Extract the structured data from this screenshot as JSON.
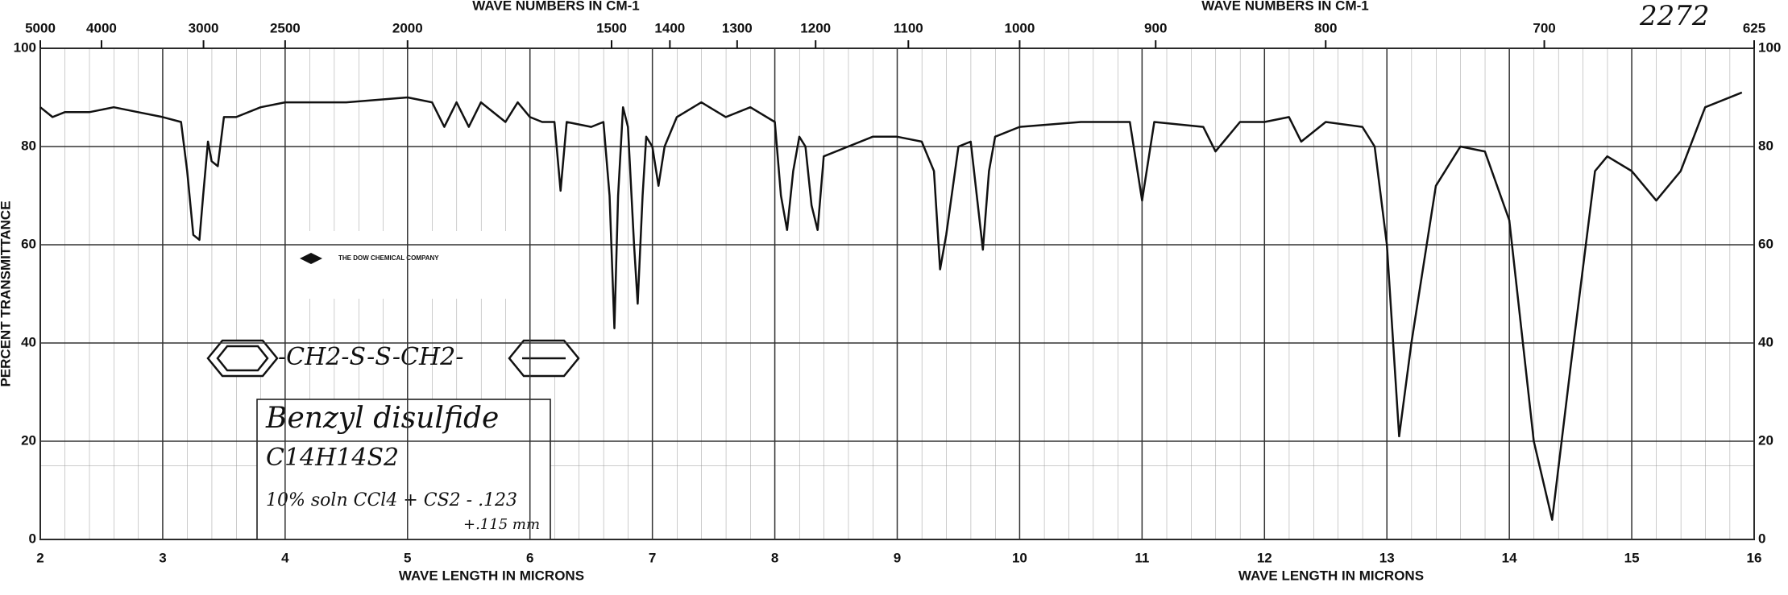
{
  "chart_data": {
    "type": "line",
    "x_label": "WAVE LENGTH IN MICRONS",
    "x2_label": "WAVE NUMBERS IN CM-1",
    "y_label": "PERCENT TRANSMITTANCE",
    "xlim": [
      2,
      16
    ],
    "xticks": [
      2,
      3,
      4,
      5,
      6,
      7,
      8,
      9,
      10,
      11,
      12,
      13,
      14,
      15,
      16
    ],
    "x2ticks": [
      5000,
      4000,
      3000,
      2500,
      2000,
      1500,
      1400,
      1300,
      1200,
      1100,
      1000,
      900,
      800,
      700,
      625
    ],
    "ylim": [
      0,
      100
    ],
    "yticks": [
      0,
      20,
      40,
      60,
      80,
      100
    ],
    "grid": true,
    "x": [
      2.0,
      2.1,
      2.2,
      2.4,
      2.6,
      2.8,
      3.0,
      3.15,
      3.2,
      3.25,
      3.3,
      3.33,
      3.37,
      3.4,
      3.45,
      3.5,
      3.6,
      3.8,
      4.0,
      4.5,
      5.0,
      5.2,
      5.3,
      5.4,
      5.5,
      5.6,
      5.8,
      5.9,
      6.0,
      6.1,
      6.2,
      6.25,
      6.3,
      6.5,
      6.6,
      6.65,
      6.69,
      6.72,
      6.76,
      6.8,
      6.85,
      6.88,
      6.92,
      6.95,
      7.0,
      7.05,
      7.1,
      7.2,
      7.4,
      7.6,
      7.8,
      8.0,
      8.05,
      8.1,
      8.15,
      8.2,
      8.25,
      8.3,
      8.35,
      8.4,
      8.6,
      8.8,
      9.0,
      9.2,
      9.3,
      9.35,
      9.4,
      9.5,
      9.6,
      9.7,
      9.75,
      9.8,
      10.0,
      10.5,
      10.9,
      11.0,
      11.1,
      11.5,
      11.6,
      11.8,
      12.0,
      12.2,
      12.3,
      12.5,
      12.8,
      12.9,
      13.0,
      13.1,
      13.2,
      13.4,
      13.6,
      13.8,
      14.0,
      14.2,
      14.35,
      14.5,
      14.7,
      14.8,
      15.0,
      15.2,
      15.4,
      15.6,
      15.9
    ],
    "series": [
      {
        "name": "Benzyl disulfide",
        "color": "#111111",
        "values": [
          88,
          86,
          87,
          87,
          88,
          87,
          86,
          85,
          75,
          62,
          61,
          70,
          81,
          77,
          76,
          86,
          86,
          88,
          89,
          89,
          90,
          89,
          84,
          89,
          84,
          89,
          85,
          89,
          86,
          85,
          85,
          71,
          85,
          84,
          85,
          70,
          43,
          70,
          88,
          84,
          60,
          48,
          70,
          82,
          80,
          72,
          80,
          86,
          89,
          86,
          88,
          85,
          70,
          63,
          75,
          82,
          80,
          68,
          63,
          78,
          80,
          82,
          82,
          81,
          75,
          55,
          62,
          80,
          81,
          59,
          75,
          82,
          84,
          85,
          85,
          69,
          85,
          84,
          79,
          85,
          85,
          86,
          81,
          85,
          84,
          80,
          60,
          21,
          40,
          72,
          80,
          79,
          65,
          20,
          4,
          35,
          75,
          78,
          75,
          69,
          75,
          88,
          91
        ]
      }
    ],
    "annotations": [
      "2272",
      "THE DOW CHEMICAL COMPANY",
      "-CH2-S-S-CH2-",
      "Benzyl disulfide",
      "C14H14S2",
      "10% soln CCl4 + CS2 - .123",
      "+.115 mm"
    ]
  }
}
